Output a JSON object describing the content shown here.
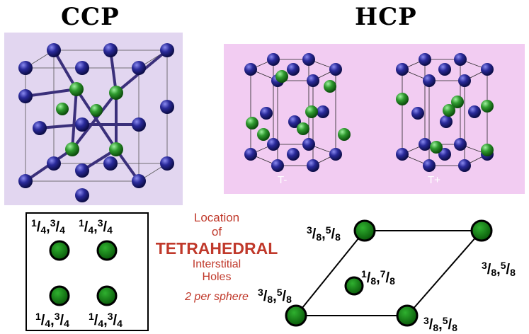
{
  "titles": {
    "left": "CCP",
    "right": "HCP"
  },
  "hcp_labels": {
    "minus": "T-",
    "plus": "T+"
  },
  "colors": {
    "sphere_blue": "#1a1a7a",
    "sphere_green": "#1f7a1f",
    "ccp_bg": "#e2d6f0",
    "hcp_bg": "#f2ccf2",
    "caption_red": "#c0392b"
  },
  "center": {
    "line1": "Location",
    "line2": "of",
    "line3": "TETRAHEDRAL",
    "line4": "Interstitial",
    "line5": "Holes",
    "line6": "2 per sphere"
  },
  "square_labels": [
    {
      "a": "1",
      "b": "4",
      "c": "3",
      "d": "4"
    },
    {
      "a": "1",
      "b": "4",
      "c": "3",
      "d": "4"
    },
    {
      "a": "1",
      "b": "4",
      "c": "3",
      "d": "4"
    },
    {
      "a": "1",
      "b": "4",
      "c": "3",
      "d": "4"
    }
  ],
  "rhombus_labels": [
    {
      "a": "3",
      "b": "8",
      "c": "5",
      "d": "8"
    },
    {
      "a": "3",
      "b": "8",
      "c": "5",
      "d": "8"
    },
    {
      "a": "1",
      "b": "8",
      "c": "7",
      "d": "8"
    },
    {
      "a": "3",
      "b": "8",
      "c": "5",
      "d": "8"
    },
    {
      "a": "3",
      "b": "8",
      "c": "5",
      "d": "8"
    }
  ]
}
